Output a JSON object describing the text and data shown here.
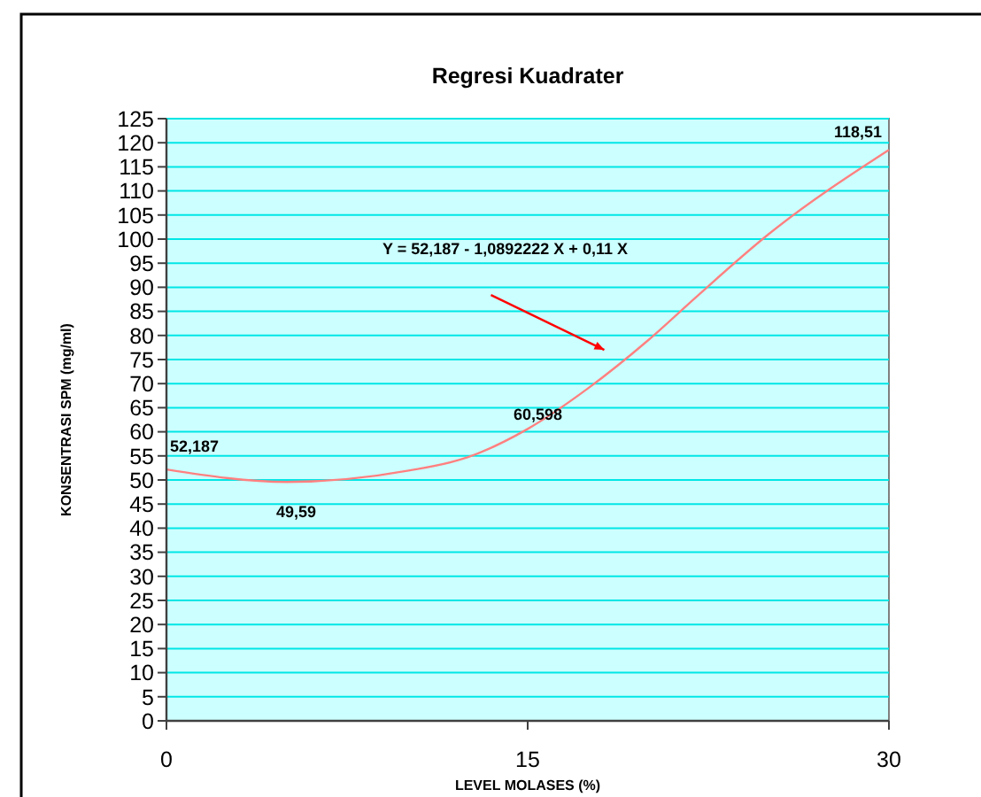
{
  "chart_data": {
    "type": "line",
    "title": "Regresi Kuadrater",
    "xlabel": "LEVEL MOLASES (%)",
    "ylabel": "KONSENTRASI SPM (mg/ml)",
    "x": [
      0,
      5,
      10,
      12.5,
      15,
      17.5,
      20,
      22,
      25,
      30
    ],
    "series": [
      {
        "color": "#ff8080",
        "values": [
          52.187,
          49.59,
          51.9,
          54.7,
          60.598,
          69,
          79,
          88,
          101,
          118.51
        ]
      }
    ],
    "xlim": [
      0,
      30
    ],
    "xticks": [
      0,
      15,
      30
    ],
    "ylim": [
      0,
      125
    ],
    "yticks": [
      0,
      5,
      10,
      15,
      20,
      25,
      30,
      35,
      40,
      45,
      50,
      55,
      60,
      65,
      70,
      75,
      80,
      85,
      90,
      95,
      100,
      105,
      110,
      115,
      120,
      125
    ],
    "grid": "y",
    "marker": "none",
    "line_style": "solid",
    "annotations": [
      {
        "text": "52,187",
        "x": 0,
        "y": 52.187
      },
      {
        "text": "49,59",
        "x": 5,
        "y": 49.59
      },
      {
        "text": "60,598",
        "x": 15,
        "y": 60.598
      },
      {
        "text": "118,51",
        "x": 30,
        "y": 118.51
      },
      "Y = 52,187 - 1,0892222 X + 0,11 X"
    ]
  }
}
